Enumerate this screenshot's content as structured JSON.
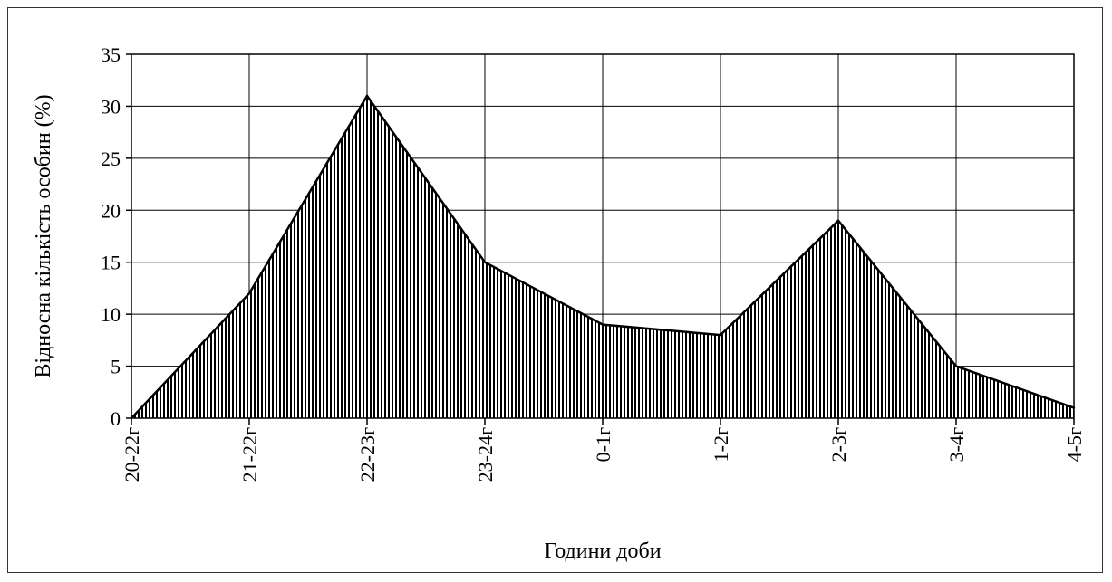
{
  "chart_data": {
    "type": "area",
    "title": "",
    "xlabel": "Години доби",
    "ylabel": "Відносна кількість особин (%)",
    "categories": [
      "20-22г",
      "21-22г",
      "22-23г",
      "23-24г",
      "0-1г",
      "1-2г",
      "2-3г",
      "3-4г",
      "4-5г"
    ],
    "values": [
      0,
      12,
      31,
      15,
      9,
      8,
      19,
      5,
      1
    ],
    "ylim": [
      0,
      35
    ],
    "yticks": [
      0,
      5,
      10,
      15,
      20,
      25,
      30,
      35
    ],
    "grid": true,
    "legend": "none",
    "fill_pattern": "vertical-hatch",
    "colors": {
      "line": "#000000",
      "hatch": "#000000",
      "background": "#ffffff",
      "grid": "#000000"
    }
  }
}
